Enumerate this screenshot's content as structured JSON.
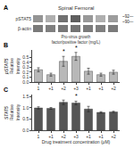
{
  "chart_data": [
    {
      "type": "heatmap",
      "title": "Spinal Femoral",
      "xlabel": "Pro-virus growth\nfactor/positive factor (mg/L)",
      "categories": [
        null,
        null,
        null,
        null,
        null,
        null,
        null
      ],
      "y_categories": [
        "pSTAT5",
        "β-actin"
      ],
      "cells": [
        [
          0.6,
          0.45,
          0.8,
          0.9,
          0.58,
          0.45,
          0.55
        ],
        [
          0.75,
          0.72,
          0.76,
          0.78,
          0.74,
          0.72,
          0.74
        ]
      ],
      "zlim": [
        0,
        1
      ],
      "tick_labels": "y",
      "grid": false,
      "annotations": [
        "A",
        "~92—",
        "~90—"
      ]
    },
    {
      "type": "bar",
      "ylabel": "Relative\nIntensity",
      "categories": [
        "1",
        "+1",
        "+2",
        "+3",
        "+1",
        "+1",
        "+2"
      ],
      "values": [
        0.25,
        0.15,
        0.42,
        0.52,
        0.22,
        0.15,
        0.2
      ],
      "errors": [
        0.04,
        0.03,
        0.1,
        0.08,
        0.06,
        0.03,
        0.04
      ],
      "color": "#b8b8b8",
      "ylim": [
        0,
        0.65
      ],
      "yticks": [
        {
          "value": 0.0,
          "label": "0.0"
        },
        0.1,
        0.2,
        0.3,
        0.4,
        0.5
      ],
      "stars": [
        null,
        null,
        "*",
        "*",
        null,
        null,
        null
      ],
      "grid": false,
      "annotations": [
        "B",
        "pSTAT5"
      ]
    },
    {
      "type": "bar",
      "xlabel": "Drug treatment concentration (μM)",
      "ylabel": "Relative\nIntensity",
      "categories": [
        "1",
        "+1",
        "+2",
        "+3",
        "+1",
        "+1",
        "+2"
      ],
      "values": [
        1.0,
        0.98,
        1.25,
        1.22,
        0.95,
        0.8,
        0.82
      ],
      "errors": [
        0.05,
        0.04,
        0.1,
        0.08,
        0.12,
        0.03,
        0.03
      ],
      "color": "#555555",
      "ylim": [
        0,
        1.6
      ],
      "yticks": [
        {
          "value": 0.0,
          "label": "0.0"
        },
        0.5,
        {
          "value": 1.0,
          "label": "1.0"
        },
        1.5
      ],
      "stars": [
        null,
        null,
        null,
        "*",
        null,
        null,
        null
      ],
      "grid": false,
      "annotations": [
        "C",
        "STAT5"
      ]
    }
  ]
}
